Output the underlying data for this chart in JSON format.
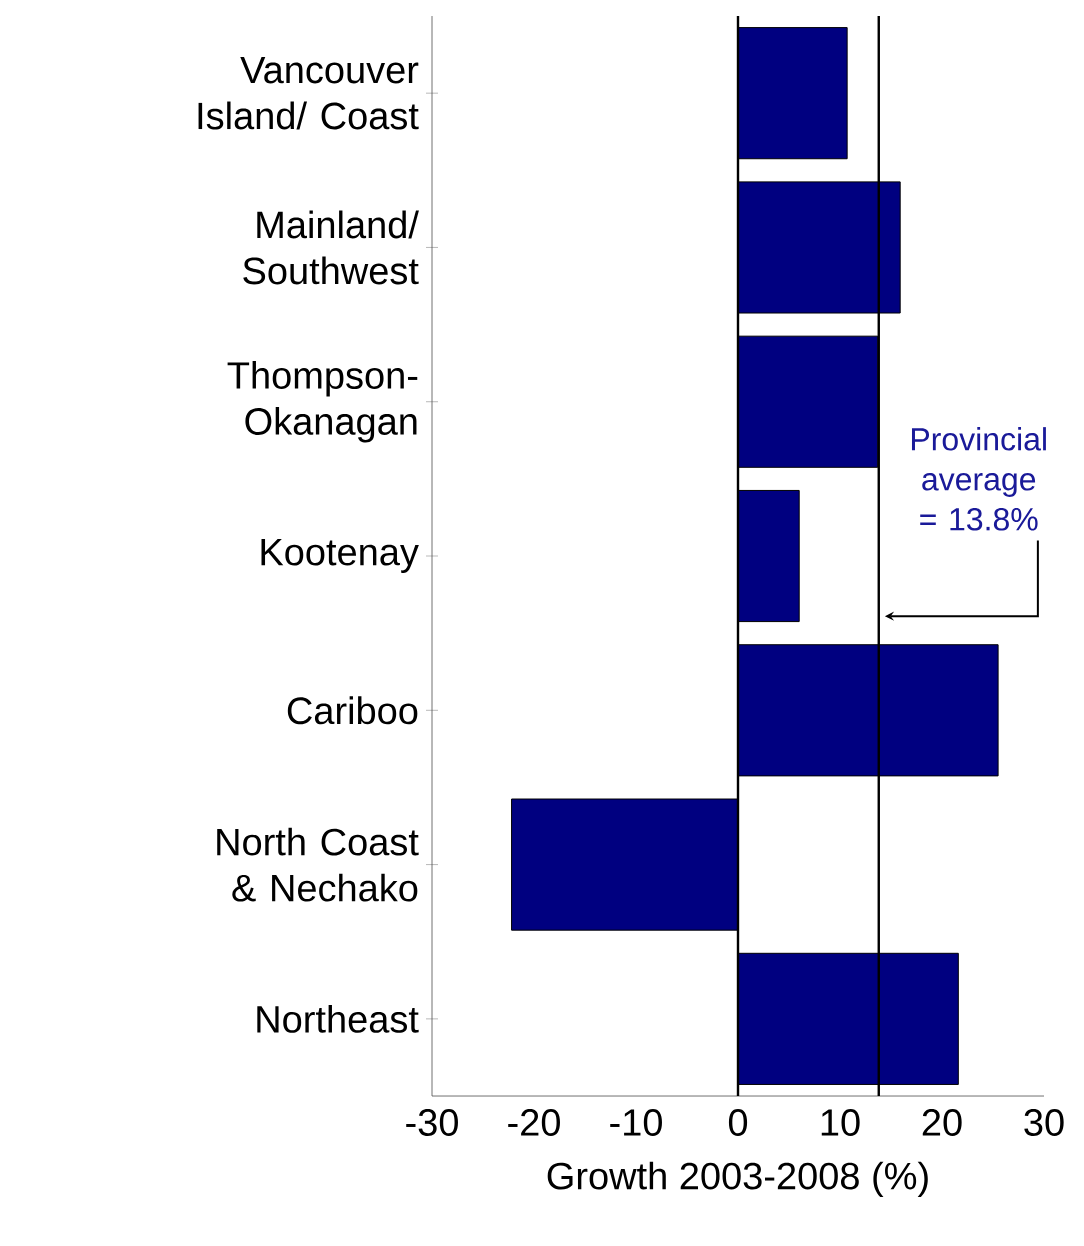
{
  "chart_data": {
    "type": "bar",
    "orientation": "horizontal",
    "xlabel": "Growth 2003-2008 (%)",
    "categories": [
      "Vancouver Island/ Coast",
      "Mainland/ Southwest",
      "Thompson- Okanagan",
      "Kootenay",
      "Cariboo",
      "North Coast & Nechako",
      "Northeast"
    ],
    "values": [
      10.7,
      15.9,
      13.7,
      6.0,
      25.5,
      -22.2,
      21.6
    ],
    "color": "#000080",
    "xlim": [
      -30,
      30
    ],
    "xticks": [
      -30,
      -20,
      -10,
      0,
      10,
      20,
      30
    ],
    "ref_lines": [
      {
        "axis": "x",
        "value": 0,
        "color": "#000000"
      },
      {
        "axis": "x",
        "value": 13.8,
        "label": "Provincial average = 13.8%",
        "color": "#000000"
      }
    ],
    "grid": false
  }
}
